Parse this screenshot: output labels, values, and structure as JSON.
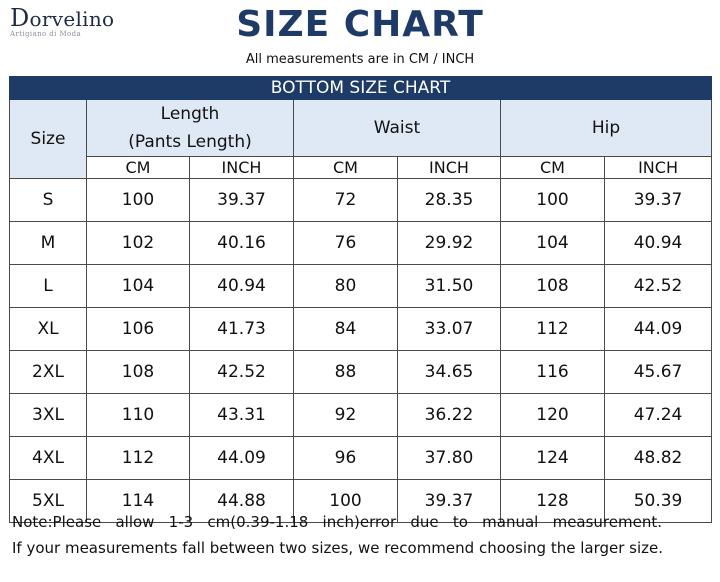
{
  "brand": {
    "name_cap": "D",
    "name_rest": "orvelino",
    "tagline": "Artigiano di Moda"
  },
  "title": "SIZE CHART",
  "subtitle": "All measurements are in CM / INCH",
  "table": {
    "banner": "BOTTOM SIZE CHART",
    "size_header": "Size",
    "groups": [
      {
        "label_line1": "Length",
        "label_line2": "(Pants Length)"
      },
      {
        "label_line1": "Waist"
      },
      {
        "label_line1": "Hip"
      }
    ],
    "units": [
      "CM",
      "INCH",
      "CM",
      "INCH",
      "CM",
      "INCH"
    ],
    "rows": [
      [
        "S",
        "100",
        "39.37",
        "72",
        "28.35",
        "100",
        "39.37"
      ],
      [
        "M",
        "102",
        "40.16",
        "76",
        "29.92",
        "104",
        "40.94"
      ],
      [
        "L",
        "104",
        "40.94",
        "80",
        "31.50",
        "108",
        "42.52"
      ],
      [
        "XL",
        "106",
        "41.73",
        "84",
        "33.07",
        "112",
        "44.09"
      ],
      [
        "2XL",
        "108",
        "42.52",
        "88",
        "34.65",
        "116",
        "45.67"
      ],
      [
        "3XL",
        "110",
        "43.31",
        "92",
        "36.22",
        "120",
        "47.24"
      ],
      [
        "4XL",
        "112",
        "44.09",
        "96",
        "37.80",
        "124",
        "48.82"
      ],
      [
        "5XL",
        "114",
        "44.88",
        "100",
        "39.37",
        "128",
        "50.39"
      ]
    ]
  },
  "note": {
    "line1": "Note:Please allow 1-3 cm(0.39-1.18 inch)error due to manual measurement.",
    "line2": "If your measurements fall between two sizes, we recommend choosing the larger size."
  },
  "colors": {
    "title": "#1e3a66",
    "banner": "#1e3a66",
    "header_bg": "#dfe9f6"
  }
}
